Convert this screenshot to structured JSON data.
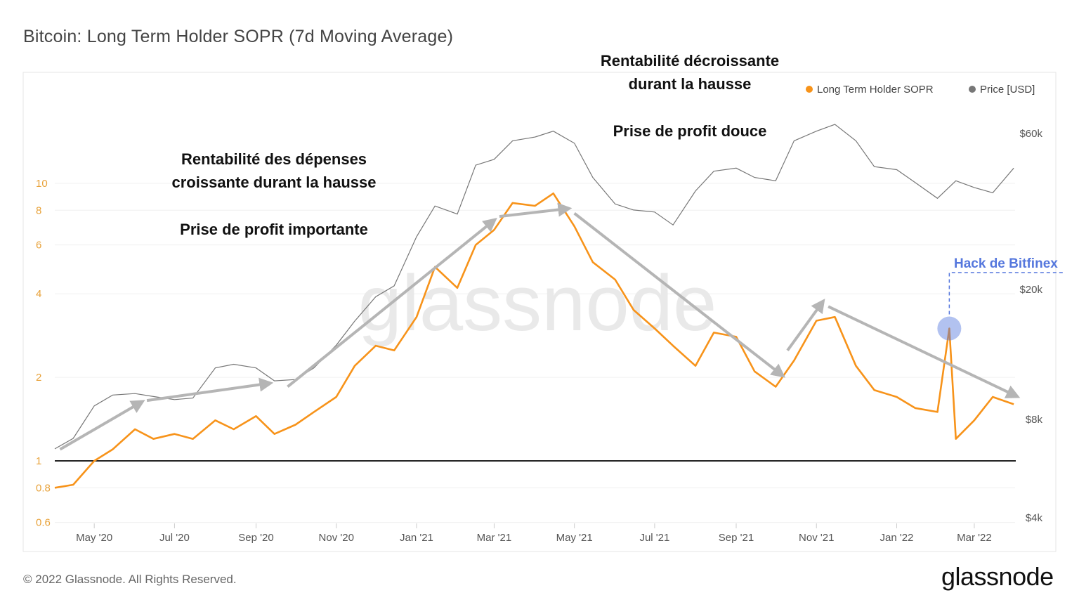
{
  "title": "Bitcoin: Long Term Holder SOPR (7d Moving Average)",
  "footer": {
    "copyright": "© 2022 Glassnode. All Rights Reserved.",
    "logo": "glassnode"
  },
  "watermark": "glassnode",
  "colors": {
    "sopr": "#f7931a",
    "price": "#777777",
    "arrow": "#b5b5b5",
    "hack": "#5577dd",
    "baseline": "#222222",
    "axis_left": "#e8a23a"
  },
  "chart_data": {
    "type": "line",
    "legend": {
      "position": "top-right",
      "items": [
        "Long Term Holder SOPR",
        "Price [USD]"
      ]
    },
    "y_left": {
      "scale": "log",
      "range": [
        0.6,
        14
      ],
      "ticks": [
        0.6,
        0.8,
        1,
        2,
        4,
        6,
        8,
        10
      ],
      "tick_labels": [
        "0.6",
        "0.8",
        "1",
        "2",
        "4",
        "6",
        "8",
        "10"
      ]
    },
    "y_right": {
      "scale": "log",
      "range": [
        4000,
        70000
      ],
      "ticks": [
        4000,
        8000,
        20000,
        60000
      ],
      "tick_labels": [
        "$4k",
        "$8k",
        "$20k",
        "$60k"
      ]
    },
    "x_ticks": [
      "May '20",
      "Jul '20",
      "Sep '20",
      "Nov '20",
      "Jan '21",
      "Mar '21",
      "May '21",
      "Jul '21",
      "Sep '21",
      "Nov '21",
      "Jan '22",
      "Mar '22"
    ],
    "x_range": [
      "2020-04-01",
      "2022-04-01"
    ],
    "baseline": 1,
    "series": [
      {
        "name": "Long Term Holder SOPR",
        "x": [
          "2020-04-01",
          "2020-04-15",
          "2020-05-01",
          "2020-05-15",
          "2020-06-01",
          "2020-06-15",
          "2020-07-01",
          "2020-07-15",
          "2020-08-01",
          "2020-08-15",
          "2020-09-01",
          "2020-09-15",
          "2020-10-01",
          "2020-10-15",
          "2020-11-01",
          "2020-11-15",
          "2020-12-01",
          "2020-12-15",
          "2021-01-01",
          "2021-01-15",
          "2021-02-01",
          "2021-02-15",
          "2021-03-01",
          "2021-03-15",
          "2021-04-01",
          "2021-04-15",
          "2021-05-01",
          "2021-05-15",
          "2021-06-01",
          "2021-06-15",
          "2021-07-01",
          "2021-07-15",
          "2021-08-01",
          "2021-08-15",
          "2021-09-01",
          "2021-09-15",
          "2021-10-01",
          "2021-10-15",
          "2021-11-01",
          "2021-11-15",
          "2021-12-01",
          "2021-12-15",
          "2022-01-01",
          "2022-01-15",
          "2022-02-01",
          "2022-02-10",
          "2022-02-15",
          "2022-03-01",
          "2022-03-15",
          "2022-03-31"
        ],
        "values": [
          0.8,
          0.82,
          1.0,
          1.1,
          1.3,
          1.2,
          1.25,
          1.2,
          1.4,
          1.3,
          1.45,
          1.25,
          1.35,
          1.5,
          1.7,
          2.2,
          2.6,
          2.5,
          3.3,
          5.0,
          4.2,
          6.0,
          6.8,
          8.5,
          8.3,
          9.2,
          7.0,
          5.2,
          4.5,
          3.5,
          3.0,
          2.6,
          2.2,
          2.9,
          2.8,
          2.1,
          1.85,
          2.3,
          3.2,
          3.3,
          2.2,
          1.8,
          1.7,
          1.55,
          1.5,
          3.0,
          1.2,
          1.4,
          1.7,
          1.6
        ]
      },
      {
        "name": "Price [USD]",
        "x": [
          "2020-04-01",
          "2020-04-15",
          "2020-05-01",
          "2020-05-15",
          "2020-06-01",
          "2020-06-15",
          "2020-07-01",
          "2020-07-15",
          "2020-08-01",
          "2020-08-15",
          "2020-09-01",
          "2020-09-15",
          "2020-10-01",
          "2020-10-15",
          "2020-11-01",
          "2020-11-15",
          "2020-12-01",
          "2020-12-15",
          "2021-01-01",
          "2021-01-15",
          "2021-02-01",
          "2021-02-15",
          "2021-03-01",
          "2021-03-15",
          "2021-04-01",
          "2021-04-15",
          "2021-05-01",
          "2021-05-15",
          "2021-06-01",
          "2021-06-15",
          "2021-07-01",
          "2021-07-15",
          "2021-08-01",
          "2021-08-15",
          "2021-09-01",
          "2021-09-15",
          "2021-10-01",
          "2021-10-15",
          "2021-11-01",
          "2021-11-15",
          "2021-12-01",
          "2021-12-15",
          "2022-01-01",
          "2022-01-15",
          "2022-02-01",
          "2022-02-15",
          "2022-03-01",
          "2022-03-15",
          "2022-03-31"
        ],
        "values": [
          6500,
          7000,
          8800,
          9500,
          9600,
          9400,
          9200,
          9300,
          11500,
          11800,
          11500,
          10500,
          10600,
          11500,
          13500,
          16000,
          19000,
          20500,
          29000,
          36000,
          34000,
          48000,
          50000,
          57000,
          58500,
          61000,
          56000,
          44000,
          36500,
          35000,
          34500,
          31500,
          40000,
          46000,
          47000,
          44000,
          43000,
          57000,
          61000,
          64000,
          57000,
          47500,
          46500,
          42500,
          38000,
          43000,
          41000,
          39500,
          47000
        ]
      }
    ],
    "annotations": [
      {
        "text": "Rentabilité décroissante durant la hausse",
        "lines": [
          "Rentabilité décroissante",
          "durant la hausse"
        ]
      },
      {
        "text": "Prise de profit douce",
        "lines": [
          "Prise de profit douce"
        ]
      },
      {
        "text": "Rentabilité des dépenses croissante durant la hausse",
        "lines": [
          "Rentabilité des dépenses",
          "croissante durant la hausse"
        ]
      },
      {
        "text": "Prise de profit importante",
        "lines": [
          "Prise de profit importante"
        ]
      },
      {
        "text": "Hack de Bitfinex",
        "lines": [
          "Hack de Bitfinex"
        ],
        "date": "2022-02-10",
        "value": 3.0
      }
    ],
    "trend_arrows": [
      {
        "from": [
          "2020-04-05",
          1.1
        ],
        "to": [
          "2020-06-05",
          1.62
        ]
      },
      {
        "from": [
          "2020-06-10",
          1.65
        ],
        "to": [
          "2020-09-10",
          1.9
        ]
      },
      {
        "from": [
          "2020-09-25",
          1.85
        ],
        "to": [
          "2021-02-28",
          7.3
        ]
      },
      {
        "from": [
          "2021-03-05",
          7.6
        ],
        "to": [
          "2021-04-25",
          8.1
        ]
      },
      {
        "from": [
          "2021-05-01",
          7.8
        ],
        "to": [
          "2021-10-05",
          2.05
        ]
      },
      {
        "from": [
          "2021-10-10",
          2.5
        ],
        "to": [
          "2021-11-05",
          3.7
        ]
      },
      {
        "from": [
          "2021-11-10",
          3.6
        ],
        "to": [
          "2022-04-01",
          1.72
        ]
      }
    ]
  }
}
